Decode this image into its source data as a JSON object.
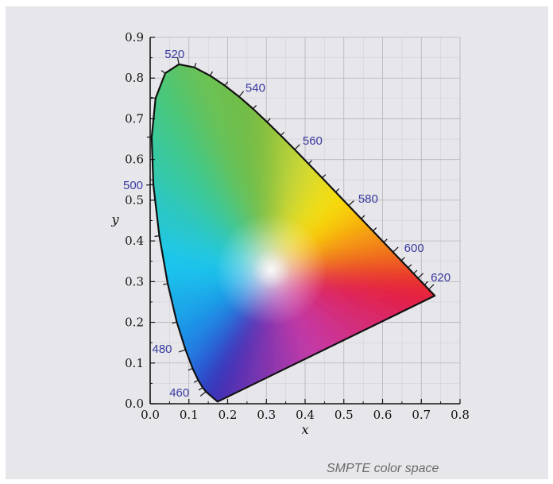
{
  "caption": "SMPTE color space",
  "chart_data": {
    "type": "chromaticity_diagram",
    "xlabel": "x",
    "ylabel": "y",
    "xlim": [
      0,
      0.8
    ],
    "ylim": [
      0,
      0.9
    ],
    "grid": true,
    "xticks": [
      {
        "v": 0.0,
        "label": "0.0"
      },
      {
        "v": 0.1,
        "label": "0.1"
      },
      {
        "v": 0.2,
        "label": "0.2"
      },
      {
        "v": 0.3,
        "label": "0.3"
      },
      {
        "v": 0.4,
        "label": "0.4"
      },
      {
        "v": 0.5,
        "label": "0.5"
      },
      {
        "v": 0.6,
        "label": "0.6"
      },
      {
        "v": 0.7,
        "label": "0.7"
      },
      {
        "v": 0.8,
        "label": "0.8"
      }
    ],
    "yticks": [
      {
        "v": 0.0,
        "label": "0.0"
      },
      {
        "v": 0.1,
        "label": "0.1"
      },
      {
        "v": 0.2,
        "label": "0.2"
      },
      {
        "v": 0.3,
        "label": "0.3"
      },
      {
        "v": 0.4,
        "label": "0.4"
      },
      {
        "v": 0.5,
        "label": "0.5"
      },
      {
        "v": 0.6,
        "label": "0.6"
      },
      {
        "v": 0.7,
        "label": "0.7"
      },
      {
        "v": 0.8,
        "label": "0.8"
      },
      {
        "v": 0.9,
        "label": "0.9"
      }
    ],
    "locus": [
      {
        "nm": 460,
        "x": 0.144,
        "y": 0.0297
      },
      {
        "nm": 465,
        "x": 0.1355,
        "y": 0.0399
      },
      {
        "nm": 470,
        "x": 0.1241,
        "y": 0.0578
      },
      {
        "nm": 475,
        "x": 0.1096,
        "y": 0.0868
      },
      {
        "nm": 480,
        "x": 0.0913,
        "y": 0.1327
      },
      {
        "nm": 485,
        "x": 0.0687,
        "y": 0.2007
      },
      {
        "nm": 490,
        "x": 0.0454,
        "y": 0.295
      },
      {
        "nm": 495,
        "x": 0.0235,
        "y": 0.4127
      },
      {
        "nm": 500,
        "x": 0.0082,
        "y": 0.5384
      },
      {
        "nm": 505,
        "x": 0.0039,
        "y": 0.6548
      },
      {
        "nm": 510,
        "x": 0.0139,
        "y": 0.7502
      },
      {
        "nm": 515,
        "x": 0.0389,
        "y": 0.812
      },
      {
        "nm": 520,
        "x": 0.0743,
        "y": 0.8338
      },
      {
        "nm": 525,
        "x": 0.1142,
        "y": 0.8262
      },
      {
        "nm": 530,
        "x": 0.1547,
        "y": 0.8059
      },
      {
        "nm": 535,
        "x": 0.1929,
        "y": 0.7816
      },
      {
        "nm": 540,
        "x": 0.2296,
        "y": 0.7543
      },
      {
        "nm": 545,
        "x": 0.2658,
        "y": 0.7243
      },
      {
        "nm": 550,
        "x": 0.3016,
        "y": 0.6923
      },
      {
        "nm": 555,
        "x": 0.3373,
        "y": 0.6589
      },
      {
        "nm": 560,
        "x": 0.3731,
        "y": 0.6245
      },
      {
        "nm": 565,
        "x": 0.4087,
        "y": 0.5896
      },
      {
        "nm": 570,
        "x": 0.4441,
        "y": 0.5547
      },
      {
        "nm": 575,
        "x": 0.4788,
        "y": 0.5202
      },
      {
        "nm": 580,
        "x": 0.5125,
        "y": 0.4866
      },
      {
        "nm": 585,
        "x": 0.5448,
        "y": 0.4544
      },
      {
        "nm": 590,
        "x": 0.5752,
        "y": 0.4242
      },
      {
        "nm": 595,
        "x": 0.6029,
        "y": 0.3965
      },
      {
        "nm": 600,
        "x": 0.627,
        "y": 0.3725
      },
      {
        "nm": 605,
        "x": 0.6482,
        "y": 0.3514
      },
      {
        "nm": 610,
        "x": 0.6658,
        "y": 0.334
      },
      {
        "nm": 615,
        "x": 0.6801,
        "y": 0.3197
      },
      {
        "nm": 620,
        "x": 0.6915,
        "y": 0.3083
      },
      {
        "nm": 630,
        "x": 0.7079,
        "y": 0.292
      },
      {
        "nm": 640,
        "x": 0.719,
        "y": 0.2809
      },
      {
        "nm": 660,
        "x": 0.73,
        "y": 0.27
      },
      {
        "nm": 700,
        "x": 0.7347,
        "y": 0.2653
      }
    ],
    "wavelength_labels": [
      {
        "nm": 460,
        "label": "460"
      },
      {
        "nm": 480,
        "label": "480"
      },
      {
        "nm": 500,
        "label": "500"
      },
      {
        "nm": 520,
        "label": "520"
      },
      {
        "nm": 540,
        "label": "540"
      },
      {
        "nm": 560,
        "label": "560"
      },
      {
        "nm": 580,
        "label": "580"
      },
      {
        "nm": 600,
        "label": "600"
      },
      {
        "nm": 620,
        "label": "620"
      }
    ],
    "white_point": {
      "x": 0.3127,
      "y": 0.329
    },
    "colors": {
      "spectral": {
        "460": "#2f2fb6",
        "470": "#2a58d8",
        "480": "#1f8fe6",
        "490": "#1fc6ec",
        "500": "#36c8a6",
        "510": "#48c878",
        "520": "#66c05a",
        "530": "#70c44e",
        "540": "#6cb849",
        "550": "#92c43a",
        "560": "#c8d83a",
        "570": "#ecdc18",
        "575": "#f8e010",
        "580": "#f8c40c",
        "590": "#f49214",
        "600": "#f06a1c",
        "610": "#ec3c24",
        "620": "#e62a2c",
        "700": "#e41f46"
      },
      "purple_line_mid": "#c43aa8",
      "white": "#ffffff",
      "locus_stroke": "#111111",
      "grid": "#b4b4b8",
      "axis": "#111111",
      "label": "#3a3aa0"
    }
  }
}
